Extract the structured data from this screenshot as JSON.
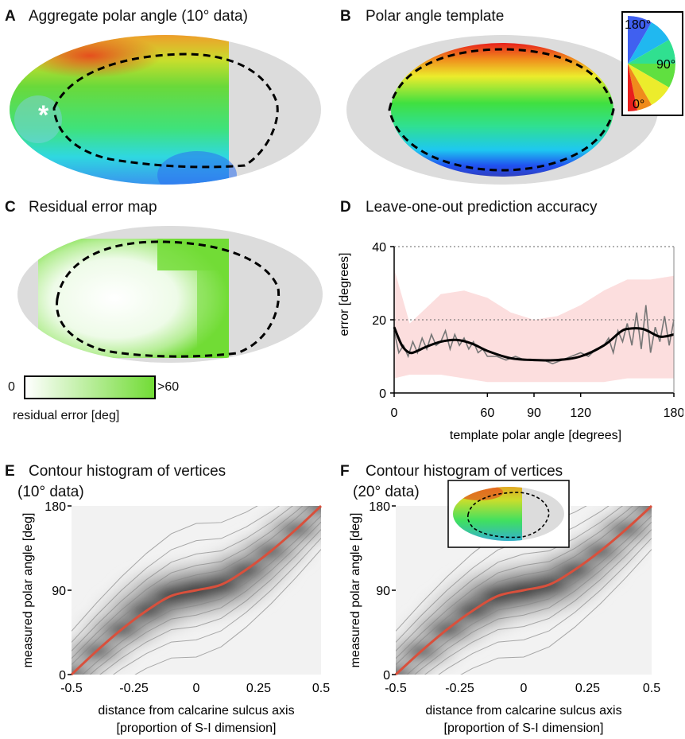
{
  "panels": {
    "A": {
      "letter": "A",
      "title": "Aggregate polar angle (10° data)",
      "marker": "*"
    },
    "B": {
      "letter": "B",
      "title": "Polar angle template",
      "legend": {
        "top": "180°",
        "right": "90°",
        "bottom": "0°"
      }
    },
    "C": {
      "letter": "C",
      "title": "Residual error map",
      "colorbar": {
        "min": "0",
        "max": ">60",
        "label": "residual error [deg]"
      }
    },
    "D": {
      "letter": "D",
      "title": "Leave-one-out prediction accuracy"
    },
    "E": {
      "letter": "E",
      "title_line1": "Contour histogram of vertices",
      "title_line2": "(10° data)"
    },
    "F": {
      "letter": "F",
      "title_line1": "Contour histogram of vertices",
      "title_line2": "(20° data)"
    }
  },
  "chart_data": [
    {
      "panel": "D",
      "type": "line",
      "xlabel": "template polar angle [degrees]",
      "ylabel": "error [degrees]",
      "xlim": [
        0,
        180
      ],
      "ylim": [
        0,
        40
      ],
      "xticks": [
        "0",
        "60",
        "90",
        "120",
        "180"
      ],
      "yticks": [
        "0",
        "20",
        "40"
      ],
      "grid_y": [
        20,
        40
      ],
      "band": {
        "x": [
          0,
          10,
          20,
          30,
          45,
          60,
          75,
          90,
          105,
          120,
          135,
          150,
          165,
          180
        ],
        "lower": [
          4,
          5,
          5,
          5,
          4,
          3,
          3,
          3,
          3,
          3,
          3,
          4,
          4,
          4
        ],
        "upper": [
          34,
          19,
          23,
          27,
          28,
          26,
          22,
          20,
          21,
          24,
          28,
          31,
          31,
          32
        ]
      },
      "series": [
        {
          "x": [
            0,
            5,
            10,
            15,
            20,
            30,
            40,
            50,
            60,
            75,
            90,
            105,
            120,
            135,
            145,
            150,
            160,
            170,
            175,
            180
          ],
          "values": [
            18,
            13,
            11,
            11.5,
            12.5,
            14,
            14.5,
            13.5,
            11.5,
            9.5,
            9,
            9,
            10,
            13,
            16.5,
            17.5,
            17.5,
            15.5,
            15.5,
            16
          ]
        },
        {
          "x": [
            0,
            3,
            6,
            9,
            12,
            15,
            18,
            21,
            24,
            27,
            30,
            33,
            36,
            39,
            42,
            45,
            48,
            51,
            54,
            57,
            60,
            66,
            72,
            78,
            84,
            90,
            96,
            102,
            108,
            114,
            120,
            125,
            130,
            135,
            138,
            141,
            144,
            147,
            150,
            153,
            156,
            159,
            162,
            165,
            168,
            171,
            174,
            177,
            180
          ],
          "values": [
            17,
            11,
            13,
            10,
            14,
            11,
            15,
            12,
            16,
            13,
            14,
            17,
            12,
            16,
            13,
            15,
            12,
            14,
            11,
            12,
            10,
            10,
            9,
            10,
            9,
            9,
            9,
            8,
            9,
            10,
            11,
            10,
            12,
            13,
            15,
            11,
            17,
            14,
            19,
            13,
            22,
            12,
            24,
            11,
            18,
            14,
            21,
            13,
            20
          ]
        }
      ]
    },
    {
      "panel": "E",
      "type": "heatmap",
      "xlabel": "distance from calcarine sulcus axis",
      "xlabel2": "[proportion of S-I dimension]",
      "ylabel": "measured polar angle [deg]",
      "xlim": [
        -0.5,
        0.5
      ],
      "ylim": [
        0,
        180
      ],
      "xticks": [
        "-0.5",
        "-0.25",
        "0",
        "0.25",
        "0.5"
      ],
      "yticks": [
        "0",
        "90",
        "180"
      ],
      "fit": {
        "x": [
          -0.5,
          -0.4,
          -0.3,
          -0.2,
          -0.1,
          0,
          0.1,
          0.2,
          0.3,
          0.4,
          0.5
        ],
        "y": [
          0,
          25,
          48,
          68,
          84,
          90,
          96,
          112,
          132,
          155,
          180
        ]
      }
    },
    {
      "panel": "F",
      "type": "heatmap",
      "xlabel": "distance from calcarine sulcus axis",
      "xlabel2": "[proportion of S-I dimension]",
      "ylabel": "measured polar angle [deg]",
      "xlim": [
        -0.5,
        0.5
      ],
      "ylim": [
        0,
        180
      ],
      "xticks": [
        "-0.5",
        "-0.25",
        "0",
        "0.25",
        "0.5"
      ],
      "yticks": [
        "0",
        "90",
        "180"
      ],
      "fit": {
        "x": [
          -0.5,
          -0.4,
          -0.3,
          -0.2,
          -0.1,
          0,
          0.1,
          0.2,
          0.3,
          0.4,
          0.5
        ],
        "y": [
          0,
          25,
          48,
          68,
          84,
          90,
          96,
          112,
          132,
          155,
          180
        ]
      }
    }
  ],
  "colors": {
    "fit_line": "#d9503c",
    "band": "#fcdede",
    "dashed": "#000000",
    "gray_mask": "#dcdcdc"
  }
}
